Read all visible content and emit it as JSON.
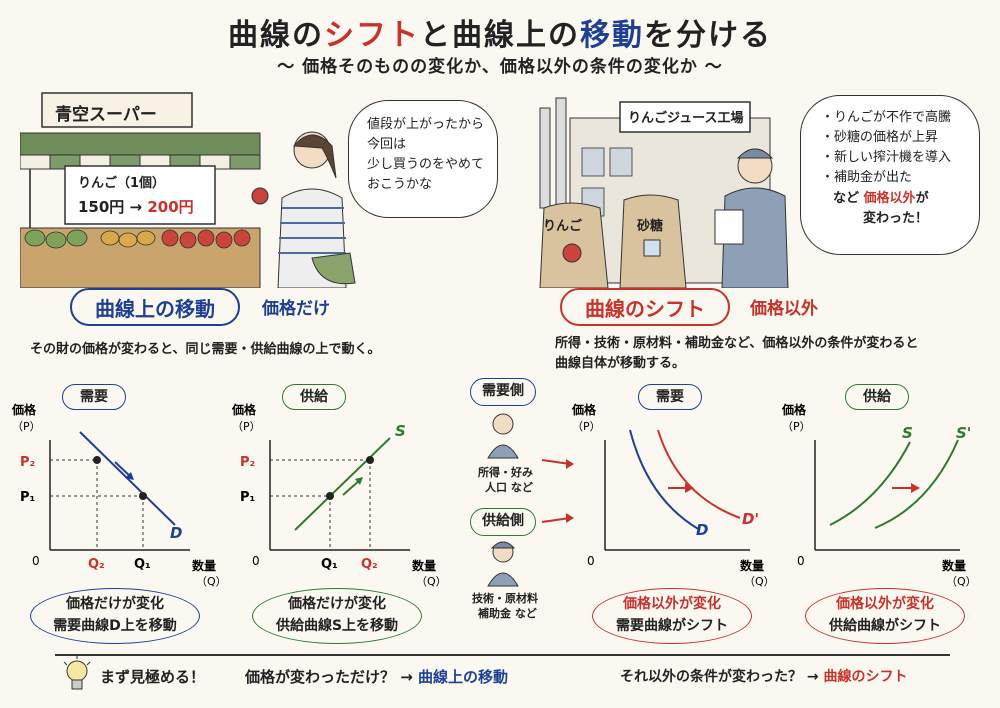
{
  "title": {
    "part1": "曲線の",
    "part2": "シフト",
    "part3": "と曲線上の",
    "part4": "移動",
    "part5": "を分ける"
  },
  "subtitle": "～ 価格そのものの変化か、価格以外の条件の変化か ～",
  "supermarket": {
    "sign": "青空スーパー",
    "price_title": "りんご（1個）",
    "price_old": "150円",
    "arrow": "→",
    "price_new": "200円",
    "customer_thought": [
      "値段が上がったから",
      "今回は",
      "少し買うのをやめて",
      "おこうかな"
    ]
  },
  "factory": {
    "sign": "りんごジュース工場",
    "bag1": "りんご",
    "bag2": "砂糖",
    "bullets": [
      "りんごが不作で高騰",
      "砂糖の価格が上昇",
      "新しい搾汁機を導入",
      "補助金が出た"
    ],
    "tail_pre": "など",
    "tail_red": "価格以外",
    "tail_post": "が",
    "tail_end": "変わった！"
  },
  "left_section": {
    "heading": "曲線上の移動",
    "tag": "価格だけ",
    "description": "その財の価格が変わると、同じ需要・供給曲線の上で動く。"
  },
  "right_section": {
    "heading": "曲線のシフト",
    "tag": "価格以外",
    "description_line1": "所得・技術・原材料・補助金など、価格以外の条件が変わると",
    "description_line2": "曲線自体が移動する。"
  },
  "side_labels": {
    "demand_side": "需要側",
    "demand_factors_1": "所得・好み",
    "demand_factors_2": "人口 など",
    "supply_side": "供給側",
    "supply_factors_1": "技術・原材料",
    "supply_factors_2": "補助金 など"
  },
  "charts": {
    "demand_move": {
      "label": "需要",
      "ylabel1": "価格",
      "ylabel2": "（P）",
      "xlabel1": "数量",
      "xlabel2": "（Q）",
      "origin": "0",
      "p2": "P₂",
      "p1": "P₁",
      "q2": "Q₂",
      "q1": "Q₁",
      "curve": "D",
      "note1": "価格だけが変化",
      "note2": "需要曲線D上を移動"
    },
    "supply_move": {
      "label": "供給",
      "ylabel1": "価格",
      "ylabel2": "（P）",
      "xlabel1": "数量",
      "xlabel2": "（Q）",
      "origin": "0",
      "p2": "P₂",
      "p1": "P₁",
      "q1": "Q₁",
      "q2": "Q₂",
      "curve": "S",
      "note1": "価格だけが変化",
      "note2": "供給曲線S上を移動"
    },
    "demand_shift": {
      "label": "需要",
      "ylabel1": "価格",
      "ylabel2": "（P）",
      "xlabel1": "数量",
      "xlabel2": "（Q）",
      "origin": "0",
      "curve1": "D",
      "curve2": "D'",
      "note1": "価格以外が変化",
      "note2": "需要曲線がシフト"
    },
    "supply_shift": {
      "label": "供給",
      "ylabel1": "価格",
      "ylabel2": "（P）",
      "xlabel1": "数量",
      "xlabel2": "（Q）",
      "origin": "0",
      "curve1": "S",
      "curve2": "S'",
      "note1": "価格以外が変化",
      "note2": "供給曲線がシフト"
    }
  },
  "footer": {
    "lead": "まず見極める！",
    "q1": "価格が変わっただけ？ →",
    "a1": "曲線上の移動",
    "q2": "それ以外の条件が変わった？ →",
    "a2": "曲線のシフト"
  },
  "colors": {
    "red": "#c8322b",
    "blue": "#1f3f94",
    "green": "#2f7a2f",
    "black": "#222222"
  }
}
